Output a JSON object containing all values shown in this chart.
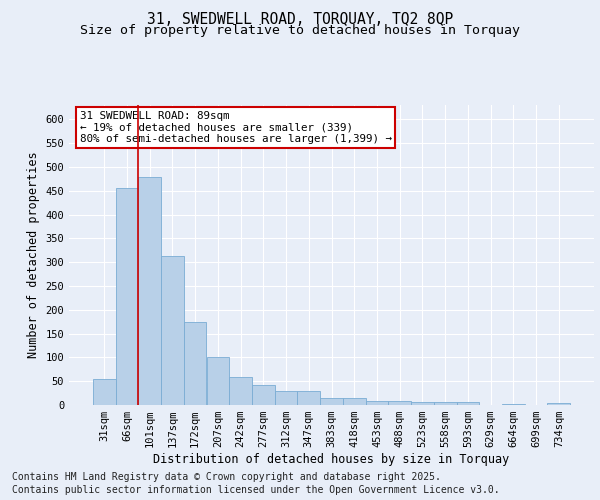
{
  "title1": "31, SWEDWELL ROAD, TORQUAY, TQ2 8QP",
  "title2": "Size of property relative to detached houses in Torquay",
  "xlabel": "Distribution of detached houses by size in Torquay",
  "ylabel": "Number of detached properties",
  "categories": [
    "31sqm",
    "66sqm",
    "101sqm",
    "137sqm",
    "172sqm",
    "207sqm",
    "242sqm",
    "277sqm",
    "312sqm",
    "347sqm",
    "383sqm",
    "418sqm",
    "453sqm",
    "488sqm",
    "523sqm",
    "558sqm",
    "593sqm",
    "629sqm",
    "664sqm",
    "699sqm",
    "734sqm"
  ],
  "values": [
    55,
    456,
    478,
    312,
    175,
    100,
    59,
    42,
    30,
    30,
    14,
    14,
    9,
    9,
    6,
    6,
    7,
    1,
    3,
    1,
    4
  ],
  "bar_color": "#b8d0e8",
  "bar_edge_color": "#7aacd4",
  "annotation_text": "31 SWEDWELL ROAD: 89sqm\n← 19% of detached houses are smaller (339)\n80% of semi-detached houses are larger (1,399) →",
  "annotation_box_color": "#ffffff",
  "annotation_box_edge": "#cc0000",
  "vline_color": "#cc0000",
  "footnote1": "Contains HM Land Registry data © Crown copyright and database right 2025.",
  "footnote2": "Contains public sector information licensed under the Open Government Licence v3.0.",
  "ylim": [
    0,
    630
  ],
  "yticks": [
    0,
    50,
    100,
    150,
    200,
    250,
    300,
    350,
    400,
    450,
    500,
    550,
    600
  ],
  "background_color": "#e8eef8",
  "plot_bg_color": "#e8eef8",
  "grid_color": "#ffffff",
  "title_fontsize": 10.5,
  "subtitle_fontsize": 9.5,
  "axis_label_fontsize": 8.5,
  "tick_fontsize": 7.5,
  "footnote_fontsize": 7.0
}
